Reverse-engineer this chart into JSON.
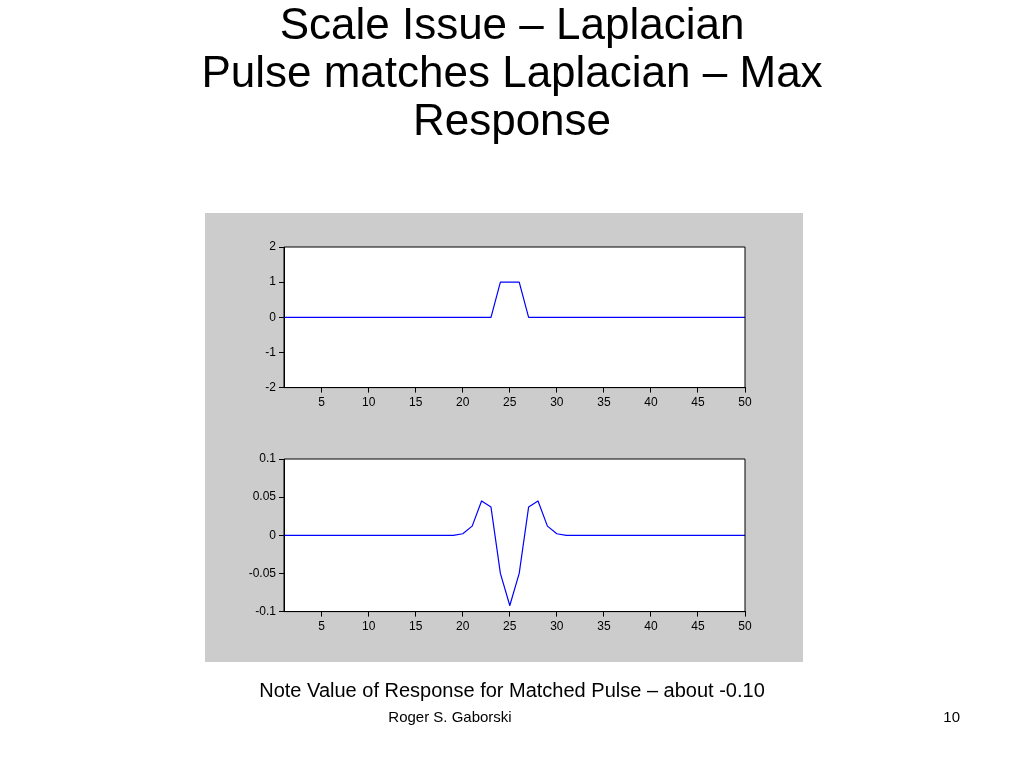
{
  "chart_data": [
    {
      "type": "line",
      "title": "Scale Issue – Laplacian",
      "subtitle": "Pulse matches Laplacian – Max Response",
      "x": [
        1,
        23,
        24,
        26,
        27,
        50
      ],
      "series": [
        {
          "color": "#0000ff",
          "values": [
            0,
            0,
            1,
            1,
            0,
            0
          ]
        }
      ],
      "xlim": [
        1,
        50
      ],
      "xticks": [
        5,
        10,
        15,
        20,
        25,
        30,
        35,
        40,
        45,
        50
      ],
      "ylim": [
        -2,
        2
      ],
      "yticks": [
        -2,
        -1,
        0,
        1,
        2
      ],
      "grid": false,
      "legend": false,
      "marker": "none",
      "line_style": "solid"
    },
    {
      "type": "line",
      "x": [
        1,
        19,
        20,
        21,
        22,
        23,
        24,
        25,
        26,
        27,
        28,
        29,
        30,
        31,
        50
      ],
      "series": [
        {
          "color": "#0000ff",
          "values": [
            0,
            0,
            0.002,
            0.012,
            0.045,
            0.037,
            -0.05,
            -0.092,
            -0.05,
            0.037,
            0.045,
            0.012,
            0.002,
            0,
            0
          ]
        }
      ],
      "xlim": [
        1,
        50
      ],
      "xticks": [
        5,
        10,
        15,
        20,
        25,
        30,
        35,
        40,
        45,
        50
      ],
      "ylim": [
        -0.1,
        0.1
      ],
      "yticks": [
        -0.1,
        -0.05,
        0,
        0.05,
        0.1
      ],
      "grid": false,
      "legend": false,
      "marker": "none",
      "line_style": "solid",
      "annotations": [
        "Note Value of Response for Matched Pulse – about -0.10",
        "Roger S. Gaborski",
        "10"
      ]
    }
  ]
}
